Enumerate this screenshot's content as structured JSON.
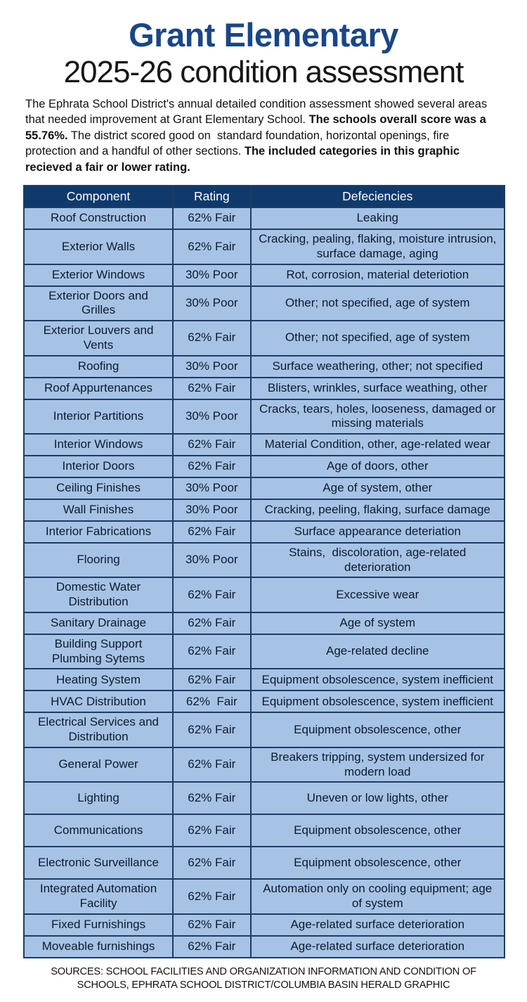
{
  "header": {
    "title": "Grant Elementary",
    "subtitle": "2025-26 condition assessment"
  },
  "intro": {
    "segments": [
      {
        "text": "The Ephrata School District's annual detailed condition assessment showed several areas that needed improvement at Grant Elementary School. ",
        "bold": false
      },
      {
        "text": "The schools overall score was a 55.76%.",
        "bold": true
      },
      {
        "text": " The district scored good on  standard foundation, horizontal openings, fire protection and a handful of other sections. ",
        "bold": false
      },
      {
        "text": "The included categories in this graphic recieved a fair or lower rating.",
        "bold": true
      }
    ]
  },
  "chart_data": {
    "type": "table",
    "title": "Grant Elementary 2025-26 condition assessment",
    "columns": [
      "Component",
      "Rating",
      "Defeciencies"
    ],
    "rows": [
      {
        "component": "Roof Construction",
        "rating": "62% Fair",
        "deficiencies": "Leaking"
      },
      {
        "component": "Exterior Walls",
        "rating": "62% Fair",
        "deficiencies": "Cracking, pealing, flaking, moisture intrusion, surface damage, aging"
      },
      {
        "component": "Exterior Windows",
        "rating": "30% Poor",
        "deficiencies": "Rot, corrosion, material deteriotion"
      },
      {
        "component": "Exterior Doors and Grilles",
        "rating": "30% Poor",
        "deficiencies": "Other; not specified, age of system"
      },
      {
        "component": "Exterior Louvers and Vents",
        "rating": "62% Fair",
        "deficiencies": "Other; not specified, age of system"
      },
      {
        "component": "Roofing",
        "rating": "30% Poor",
        "deficiencies": "Surface weathering, other; not specified"
      },
      {
        "component": "Roof Appurtenances",
        "rating": "62% Fair",
        "deficiencies": "Blisters, wrinkles, surface weathing, other"
      },
      {
        "component": "Interior Partitions",
        "rating": "30% Poor",
        "deficiencies": "Cracks, tears, holes, looseness, damaged or missing materials"
      },
      {
        "component": "Interior Windows",
        "rating": "62% Fair",
        "deficiencies": "Material Condition, other, age-related wear"
      },
      {
        "component": "Interior Doors",
        "rating": "62% Fair",
        "deficiencies": "Age of doors, other"
      },
      {
        "component": "Ceiling Finishes",
        "rating": "30% Poor",
        "deficiencies": "Age of system, other"
      },
      {
        "component": "Wall Finishes",
        "rating": "30% Poor",
        "deficiencies": "Cracking, peeling, flaking, surface damage"
      },
      {
        "component": "Interior Fabrications",
        "rating": "62% Fair",
        "deficiencies": "Surface appearance deteriation"
      },
      {
        "component": "Flooring",
        "rating": "30% Poor",
        "deficiencies": "Stains,  discoloration, age-related deterioration"
      },
      {
        "component": "Domestic Water Distribution",
        "rating": "62% Fair",
        "deficiencies": "Excessive wear"
      },
      {
        "component": "Sanitary Drainage",
        "rating": "62% Fair",
        "deficiencies": "Age of system"
      },
      {
        "component": "Building Support Plumbing Sytems",
        "rating": "62% Fair",
        "deficiencies": "Age-related decline"
      },
      {
        "component": "Heating System",
        "rating": "62% Fair",
        "deficiencies": "Equipment obsolescence, system inefficient"
      },
      {
        "component": "HVAC Distribution",
        "rating": "62%  Fair",
        "deficiencies": "Equipment obsolescence, system inefficient"
      },
      {
        "component": "Electrical Services and Distribution",
        "rating": "62% Fair",
        "deficiencies": "Equipment obsolescence, other"
      },
      {
        "component": "General Power",
        "rating": "62% Fair",
        "deficiencies": "Breakers tripping, system undersized for modern load"
      },
      {
        "component": "Lighting",
        "rating": "62% Fair",
        "deficiencies": "Uneven or low lights, other",
        "tall": true
      },
      {
        "component": "Communications",
        "rating": "62% Fair",
        "deficiencies": "Equipment obsolescence, other",
        "tall": true
      },
      {
        "component": "Electronic Surveillance",
        "rating": "62% Fair",
        "deficiencies": "Equipment obsolescence, other",
        "tall": true
      },
      {
        "component": "Integrated Automation Facility",
        "rating": "62% Fair",
        "deficiencies": "Automation only on cooling equipment; age of system"
      },
      {
        "component": "Fixed Furnishings",
        "rating": "62% Fair",
        "deficiencies": "Age-related surface deterioration"
      },
      {
        "component": "Moveable furnishings",
        "rating": "62% Fair",
        "deficiencies": "Age-related surface deterioration"
      }
    ]
  },
  "footer": {
    "sources": "SOURCES: SCHOOL FACILITIES AND ORGANIZATION INFORMATION AND CONDITION OF SCHOOLS, EPHRATA SCHOOL DISTRICT/COLUMBIA BASIN HERALD GRAPHIC"
  },
  "colors": {
    "title_blue": "#1a4687",
    "header_navy": "#0f3a6b",
    "row_blue": "#a6c3e5",
    "border_navy": "#1e3c64",
    "text_dark": "#0d1b2e"
  }
}
